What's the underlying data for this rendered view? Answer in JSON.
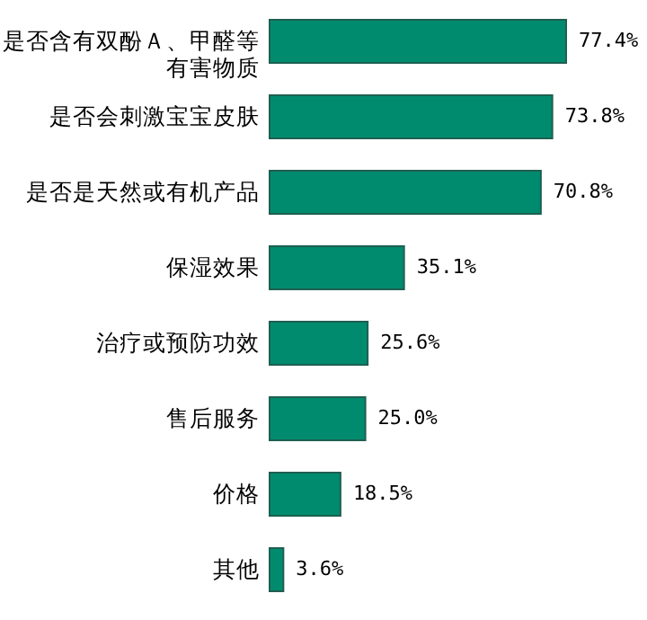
{
  "chart_data": {
    "type": "bar",
    "orientation": "horizontal",
    "categories": [
      "是否含有双酚Ａ、甲醛等有害物质",
      "是否会刺激宝宝皮肤",
      "是否是天然或有机产品",
      "保湿效果",
      "治疗或预防功效",
      "售后服务",
      "价格",
      "其他"
    ],
    "values": [
      77.4,
      73.8,
      70.8,
      35.1,
      25.6,
      25.0,
      18.5,
      3.6
    ],
    "value_labels": [
      "77.4%",
      "73.8%",
      "70.8%",
      "35.1%",
      "25.6%",
      "25.0%",
      "18.5%",
      "3.6%"
    ],
    "color": "#008b6f"
  }
}
